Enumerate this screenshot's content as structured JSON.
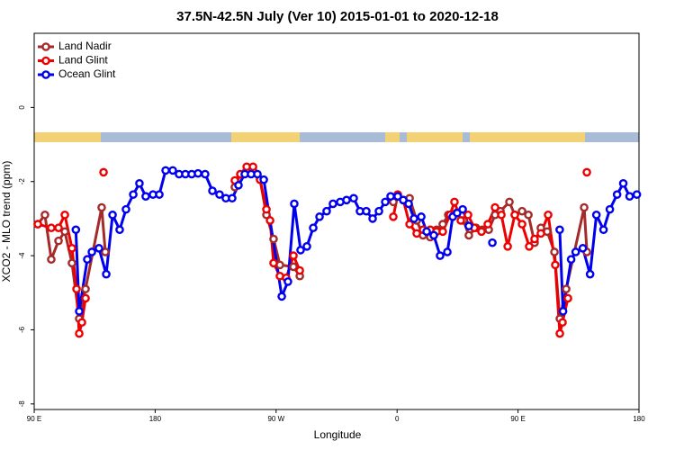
{
  "chart_data": {
    "type": "line",
    "title": "37.5N-42.5N July (Ver 10)   2015-01-01 to 2020-12-18",
    "x_label": "Longitude",
    "y_label": "XCO2 - MLO trend (ppm)",
    "xlim": [
      90,
      540
    ],
    "ylim": [
      -8.15,
      2
    ],
    "xticks": [
      {
        "value": 90,
        "label": "90 E"
      },
      180,
      {
        "value": 270,
        "label": "90 W"
      },
      {
        "value": 360,
        "label": "0"
      },
      {
        "value": 450,
        "label": "90 E"
      },
      {
        "value": 540,
        "label": "180"
      }
    ],
    "yticks": [
      -8,
      -6,
      -4,
      -2,
      0
    ],
    "legend": "top-left",
    "series": [
      {
        "name": "Land Nadir",
        "color": "#a52a2a",
        "x": [
          92.7,
          98.0,
          102.7,
          108.1,
          112.8,
          118.1,
          123.5,
          128.2,
          140.2,
          142.9,
          null,
          239.3,
          243.4,
          248.1,
          252.8,
          258.1,
          262.8,
          268.1,
          272.8,
          282.9,
          287.6,
          null,
          357.2,
          360.5,
          369.3,
          374.6,
          379.3,
          384.7,
          389.4,
          394.0,
          398.1,
          404.1,
          409.4,
          413.4,
          418.8,
          423.5,
          428.2,
          432.9,
          436.9,
          443.6,
          447.6,
          453.0,
          457.7,
          462.3,
          467.0,
          471.7,
          477.1,
          481.1,
          485.8,
          499.2,
          501.2
        ],
        "values": [
          -3.15,
          -2.9,
          -4.1,
          -3.6,
          -3.35,
          -4.2,
          -5.7,
          -4.9,
          -2.7,
          -3.9,
          null,
          -2.15,
          -1.8,
          -1.7,
          -1.7,
          -1.95,
          -2.9,
          -3.55,
          -4.25,
          -4.3,
          -4.55,
          null,
          -2.55,
          -2.4,
          -2.45,
          -3.05,
          -3.45,
          -3.5,
          -3.3,
          -3.15,
          -2.9,
          -2.85,
          -3.05,
          -3.45,
          -3.25,
          -3.3,
          -3.3,
          -2.9,
          -2.8,
          -2.55,
          -2.9,
          -2.8,
          -2.9,
          -3.65,
          -3.25,
          -3.35,
          -3.9,
          -5.7,
          -4.9,
          -2.7,
          -3.9
        ]
      },
      {
        "name": "Land Glint",
        "color": "#ee0000",
        "x": [
          92.7,
          102.7,
          108.1,
          112.8,
          118.1,
          121.5,
          123.5,
          125.5,
          128.2,
          null,
          141.6,
          null,
          239.3,
          243.4,
          248.1,
          252.8,
          258.1,
          262.8,
          265.5,
          268.1,
          272.8,
          277.5,
          282.9,
          287.6,
          null,
          357.2,
          360.5,
          364.6,
          369.3,
          374.6,
          379.3,
          384.7,
          389.4,
          394.0,
          399.4,
          402.7,
          407.4,
          412.8,
          417.5,
          422.8,
          427.5,
          432.9,
          437.6,
          442.3,
          447.6,
          453.0,
          458.3,
          462.3,
          467.0,
          472.4,
          477.7,
          481.1,
          483.1,
          487.1,
          null,
          501.2
        ],
        "values": [
          -3.15,
          -3.25,
          -3.25,
          -2.9,
          -3.8,
          -4.9,
          -6.1,
          -5.8,
          -5.15,
          null,
          -1.75,
          null,
          -1.97,
          -1.8,
          -1.6,
          -1.6,
          -1.95,
          -2.75,
          -3.05,
          -4.2,
          -4.55,
          -4.6,
          -4.0,
          -4.4,
          null,
          -2.95,
          -2.35,
          -2.5,
          -3.15,
          -3.4,
          -3.3,
          -3.3,
          -3.35,
          -3.35,
          -2.9,
          -2.55,
          -3.05,
          -2.9,
          -3.25,
          -3.35,
          -3.15,
          -2.7,
          -2.9,
          -3.75,
          -2.9,
          -3.15,
          -3.75,
          -3.55,
          -3.4,
          -2.9,
          -4.25,
          -6.1,
          -5.8,
          -5.15,
          null,
          -1.75
        ]
      },
      {
        "name": "Ocean Glint",
        "color": "#0000ee",
        "x": [
          121,
          123.5,
          129.5,
          132.9,
          138.2,
          143.6,
          148.3,
          153.6,
          158.3,
          163.7,
          168.3,
          173.0,
          178.4,
          183.1,
          187.8,
          193.1,
          197.8,
          202.5,
          207.2,
          211.9,
          217.2,
          222.6,
          227.9,
          232.6,
          237.3,
          242.0,
          246.7,
          251.4,
          256.1,
          260.8,
          274.2,
          278.8,
          283.5,
          288.2,
          292.9,
          297.6,
          302.3,
          307.6,
          312.3,
          317.7,
          322.4,
          327.7,
          332.4,
          337.1,
          341.8,
          346.5,
          351.2,
          355.2,
          360.5,
          364.6,
          368.6,
          372.6,
          378.0,
          382.0,
          387.3,
          392.0,
          397.4,
          401.4,
          404.7,
          408.8,
          413.4,
          null,
          430.9,
          null,
          481,
          483.5,
          489.5,
          492.9,
          498.2,
          503.6,
          508.3,
          513.6,
          518.3,
          523.7,
          528.3,
          533.0,
          538.4
        ],
        "values": [
          -3.3,
          -5.5,
          -4.1,
          -3.9,
          -3.8,
          -4.5,
          -2.9,
          -3.3,
          -2.75,
          -2.35,
          -2.05,
          -2.4,
          -2.35,
          -2.35,
          -1.7,
          -1.7,
          -1.8,
          -1.8,
          -1.8,
          -1.78,
          -1.8,
          -2.25,
          -2.35,
          -2.45,
          -2.45,
          -2.1,
          -1.8,
          -1.8,
          -1.8,
          -1.95,
          -5.1,
          -4.7,
          -2.6,
          -3.85,
          -3.75,
          -3.25,
          -2.95,
          -2.8,
          -2.6,
          -2.55,
          -2.5,
          -2.45,
          -2.8,
          -2.8,
          -3.0,
          -2.8,
          -2.55,
          -2.4,
          -2.4,
          -2.5,
          -2.6,
          -3.0,
          -2.95,
          -3.35,
          -3.45,
          -4.0,
          -3.9,
          -2.95,
          -2.85,
          -2.75,
          -3.2,
          null,
          -3.65,
          null,
          -3.3,
          -5.5,
          -4.1,
          -3.9,
          -3.8,
          -4.5,
          -2.9,
          -3.3,
          -2.75,
          -2.35,
          -2.05,
          -2.4,
          -2.35
        ]
      }
    ]
  }
}
